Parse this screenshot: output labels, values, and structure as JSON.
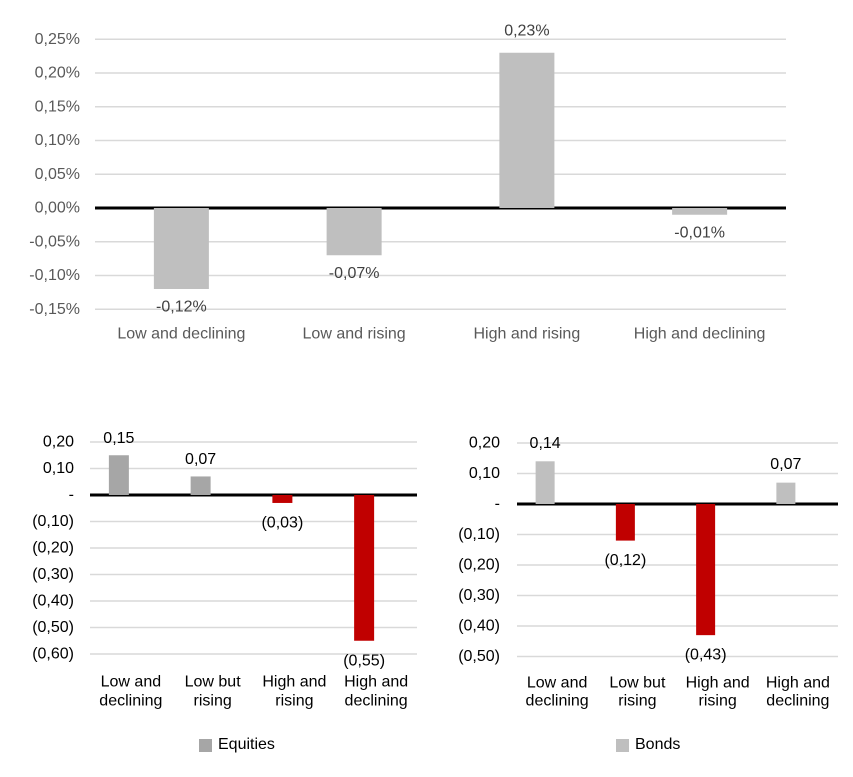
{
  "shared": {
    "gridline_color": "#d9d9d9",
    "zero_line_color": "#000000",
    "background": "#ffffff"
  },
  "chart_data": [
    {
      "id": "overall",
      "type": "bar",
      "categories": [
        [
          "Low and declining"
        ],
        [
          "Low and rising"
        ],
        [
          "High and rising"
        ],
        [
          "High and declining"
        ]
      ],
      "values": [
        -0.12,
        -0.07,
        0.23,
        -0.01
      ],
      "value_labels": [
        "-0,12%",
        "-0,07%",
        "0,23%",
        "-0,01%"
      ],
      "y_ticks": {
        "labels": [
          "0,25%",
          "0,20%",
          "0,15%",
          "0,10%",
          "0,05%",
          "0,00%",
          "-0,05%",
          "-0,10%",
          "-0,15%"
        ],
        "values": [
          0.25,
          0.2,
          0.15,
          0.1,
          0.05,
          0.0,
          -0.05,
          -0.1,
          -0.15
        ]
      },
      "ylim": [
        -0.15,
        0.25
      ],
      "grid": true,
      "colors": {
        "positive": "#bfbfbf",
        "negative": "#bfbfbf",
        "axis_text": "#595959",
        "category_text": "#595959",
        "value_text": "#404040"
      },
      "legend": null
    },
    {
      "id": "equities",
      "type": "bar",
      "categories": [
        [
          "Low and",
          "declining"
        ],
        [
          "Low but",
          "rising"
        ],
        [
          "High and",
          "rising"
        ],
        [
          "High and",
          "declining"
        ]
      ],
      "values": [
        0.15,
        0.07,
        -0.03,
        -0.55
      ],
      "value_labels": [
        "0,15",
        "0,07",
        "(0,03)",
        "(0,55)"
      ],
      "y_ticks": {
        "labels": [
          "0,20",
          "0,10",
          "-",
          "(0,10)",
          "(0,20)",
          "(0,30)",
          "(0,40)",
          "(0,50)",
          "(0,60)"
        ],
        "values": [
          0.2,
          0.1,
          0.0,
          -0.1,
          -0.2,
          -0.3,
          -0.4,
          -0.5,
          -0.6
        ]
      },
      "ylim": [
        -0.6,
        0.2
      ],
      "grid": true,
      "colors": {
        "positive": "#a6a6a6",
        "negative": "#c00000",
        "axis_text": "#000000",
        "category_text": "#000000",
        "value_text": "#000000"
      },
      "legend": {
        "label": "Equities",
        "color": "#a6a6a6"
      }
    },
    {
      "id": "bonds",
      "type": "bar",
      "categories": [
        [
          "Low and",
          "declining"
        ],
        [
          "Low but",
          "rising"
        ],
        [
          "High and",
          "rising"
        ],
        [
          "High and",
          "declining"
        ]
      ],
      "values": [
        0.14,
        -0.12,
        -0.43,
        0.07
      ],
      "value_labels": [
        "0,14",
        "(0,12)",
        "(0,43)",
        "0,07"
      ],
      "y_ticks": {
        "labels": [
          "0,20",
          "0,10",
          "-",
          "(0,10)",
          "(0,20)",
          "(0,30)",
          "(0,40)",
          "(0,50)"
        ],
        "values": [
          0.2,
          0.1,
          0.0,
          -0.1,
          -0.2,
          -0.3,
          -0.4,
          -0.5
        ]
      },
      "ylim": [
        -0.5,
        0.2
      ],
      "grid": true,
      "colors": {
        "positive": "#bfbfbf",
        "negative": "#c00000",
        "axis_text": "#000000",
        "category_text": "#000000",
        "value_text": "#000000"
      },
      "legend": {
        "label": "Bonds",
        "color": "#bfbfbf"
      }
    }
  ]
}
